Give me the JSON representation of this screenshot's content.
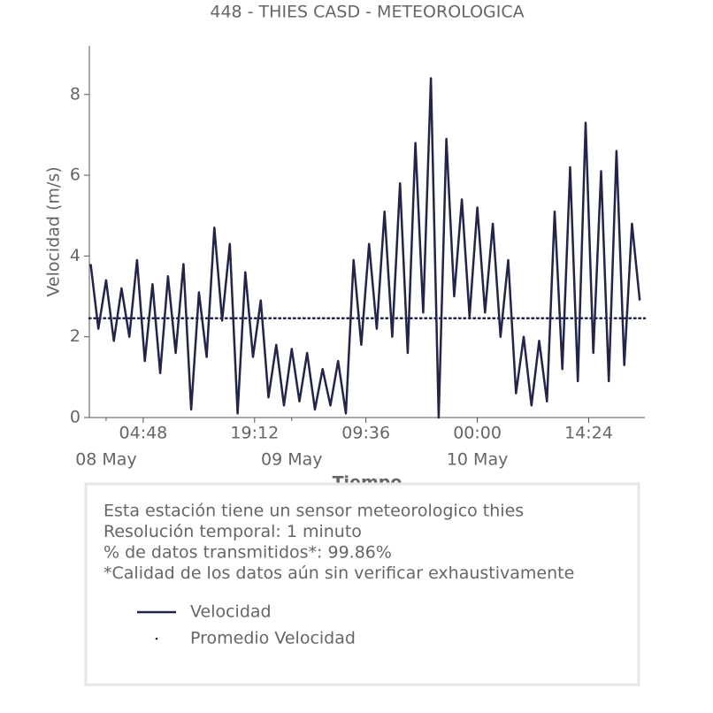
{
  "chart_data": {
    "type": "line",
    "title": "448 - THIES CASD - METEOROLOGICA",
    "xlabel": "Tiempo",
    "ylabel": "Velocidad (m/s)",
    "xlim": [
      "07 May 21:50",
      "10 May 21:40"
    ],
    "ylim": [
      0,
      9.2
    ],
    "yticks": [
      0,
      2,
      4,
      6,
      8
    ],
    "xticks": [
      {
        "value": "08 May 04:48",
        "label": "04:48"
      },
      {
        "value": "08 May 19:12",
        "label": "19:12"
      },
      {
        "value": "09 May 09:36",
        "label": "09:36"
      },
      {
        "value": "10 May 00:00",
        "label": "00:00"
      },
      {
        "value": "10 May 14:24",
        "label": "14:24"
      }
    ],
    "xticks_minor": [
      {
        "value": "08 May 00:00",
        "label": "08 May"
      },
      {
        "value": "09 May 00:00",
        "label": "09 May"
      },
      {
        "value": "10 May 00:00",
        "label": "10 May"
      }
    ],
    "x": [
      "07 May 22:00",
      "07 May 23:00",
      "08 May 00:00",
      "08 May 01:00",
      "08 May 02:00",
      "08 May 03:00",
      "08 May 04:00",
      "08 May 05:00",
      "08 May 06:00",
      "08 May 07:00",
      "08 May 08:00",
      "08 May 09:00",
      "08 May 10:00",
      "08 May 11:00",
      "08 May 12:00",
      "08 May 13:00",
      "08 May 14:00",
      "08 May 15:00",
      "08 May 16:00",
      "08 May 17:00",
      "08 May 18:00",
      "08 May 19:00",
      "08 May 20:00",
      "08 May 21:00",
      "08 May 22:00",
      "08 May 23:00",
      "09 May 00:00",
      "09 May 01:00",
      "09 May 02:00",
      "09 May 03:00",
      "09 May 04:00",
      "09 May 05:00",
      "09 May 06:00",
      "09 May 07:00",
      "09 May 08:00",
      "09 May 09:00",
      "09 May 10:00",
      "09 May 11:00",
      "09 May 12:00",
      "09 May 13:00",
      "09 May 14:00",
      "09 May 15:00",
      "09 May 16:00",
      "09 May 17:00",
      "09 May 18:00",
      "09 May 19:00",
      "09 May 20:00",
      "09 May 21:00",
      "09 May 22:00",
      "09 May 23:00",
      "10 May 00:00",
      "10 May 01:00",
      "10 May 02:00",
      "10 May 03:00",
      "10 May 04:00",
      "10 May 05:00",
      "10 May 06:00",
      "10 May 07:00",
      "10 May 08:00",
      "10 May 09:00",
      "10 May 10:00",
      "10 May 11:00",
      "10 May 12:00",
      "10 May 13:00",
      "10 May 14:00",
      "10 May 15:00",
      "10 May 16:00",
      "10 May 17:00",
      "10 May 18:00",
      "10 May 19:00",
      "10 May 20:00",
      "10 May 21:00"
    ],
    "series": [
      {
        "name": "Velocidad",
        "color": "#22244a",
        "values": [
          3.8,
          2.2,
          3.4,
          1.9,
          3.2,
          2.0,
          3.9,
          1.4,
          3.3,
          1.1,
          3.5,
          1.6,
          3.8,
          0.2,
          3.1,
          1.5,
          4.7,
          2.4,
          4.3,
          0.1,
          3.6,
          1.5,
          2.9,
          0.5,
          1.8,
          0.3,
          1.7,
          0.4,
          1.6,
          0.2,
          1.2,
          0.3,
          1.4,
          0.1,
          3.9,
          1.8,
          4.3,
          2.2,
          5.1,
          2.0,
          5.8,
          1.6,
          6.8,
          2.6,
          8.4,
          0.0,
          6.9,
          3.0,
          5.4,
          2.5,
          5.2,
          2.6,
          4.8,
          2.0,
          3.9,
          0.6,
          2.0,
          0.3,
          1.9,
          0.4,
          5.1,
          1.2,
          6.2,
          0.9,
          7.3,
          1.6,
          6.1,
          0.9,
          6.6,
          1.3,
          4.8,
          2.9
        ]
      }
    ],
    "reference_line": {
      "name": "Promedio Velocidad",
      "value": 2.46,
      "color": "#22244a"
    },
    "info_box": [
      "Esta estación tiene un sensor meteorologico thies",
      "Resolución temporal: 1 minuto",
      "% de datos transmitidos*: 99.86%",
      "*Calidad de los datos aún sin verificar exhaustivamente"
    ]
  }
}
